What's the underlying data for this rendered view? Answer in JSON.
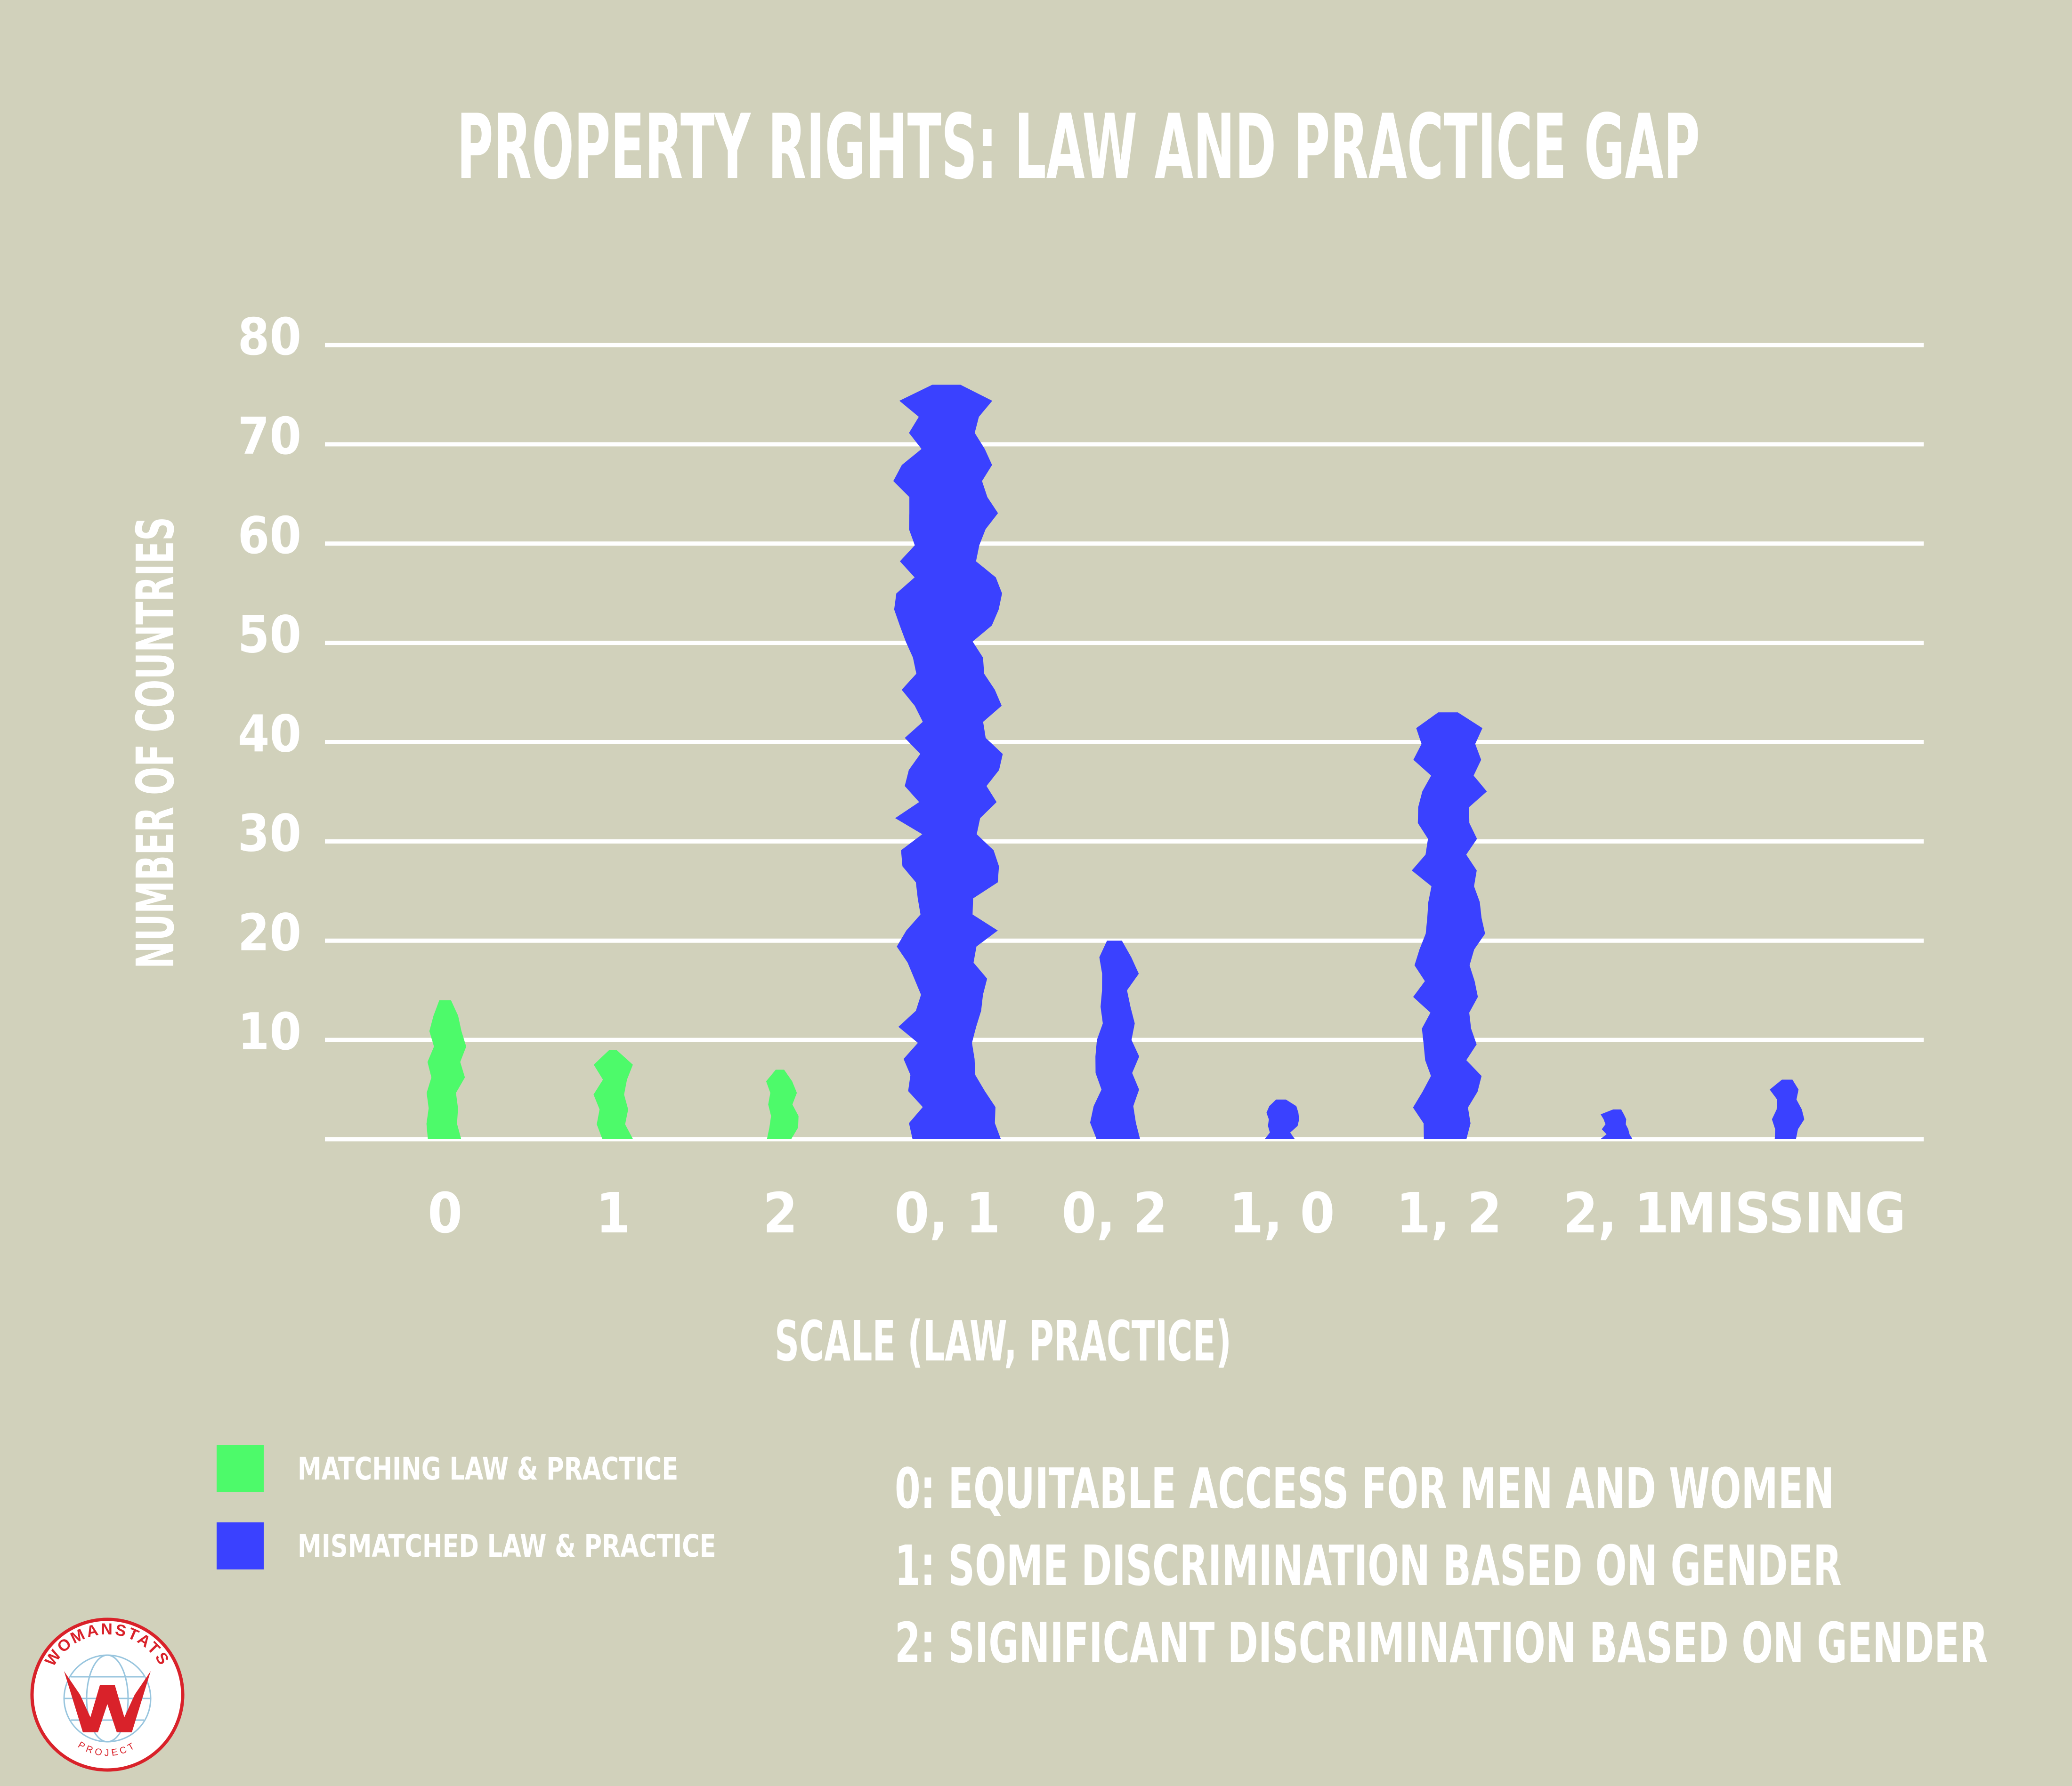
{
  "chart_data": {
    "type": "bar",
    "title": "PROPERTY RIGHTS: LAW AND PRACTICE GAP",
    "xlabel": "SCALE (LAW, PRACTICE)",
    "ylabel": "NUMBER OF COUNTRIES",
    "categories": [
      "0",
      "1",
      "2",
      "0, 1",
      "0, 2",
      "1, 0",
      "1, 2",
      "2, 1",
      "MISSING"
    ],
    "values": [
      14,
      9,
      7,
      76,
      20,
      4,
      43,
      3,
      6
    ],
    "group": [
      "matching",
      "matching",
      "matching",
      "mismatched",
      "mismatched",
      "mismatched",
      "mismatched",
      "mismatched",
      "mismatched"
    ],
    "yticks": [
      10,
      20,
      30,
      40,
      50,
      60,
      70,
      80
    ],
    "ylim": [
      0,
      80
    ],
    "grid": true,
    "legend": [
      {
        "key": "matching",
        "label": "MATCHING LAW & PRACTICE",
        "color": "#4dfa6a"
      },
      {
        "key": "mismatched",
        "label": "MISMATCHED LAW & PRACTICE",
        "color": "#3a41ff"
      }
    ]
  },
  "scale_notes": [
    "0: EQUITABLE ACCESS FOR MEN AND WOMEN",
    "1: SOME DISCRIMINATION BASED ON GENDER",
    "2: SIGNIFICANT DISCRIMINATION BASED ON GENDER"
  ],
  "logo": {
    "top_text": "WOMANSTATS",
    "bottom_text": "PROJECT",
    "colors": {
      "ring": "#d9222a",
      "w": "#d9222a",
      "globe": "#7fb7d6"
    }
  }
}
